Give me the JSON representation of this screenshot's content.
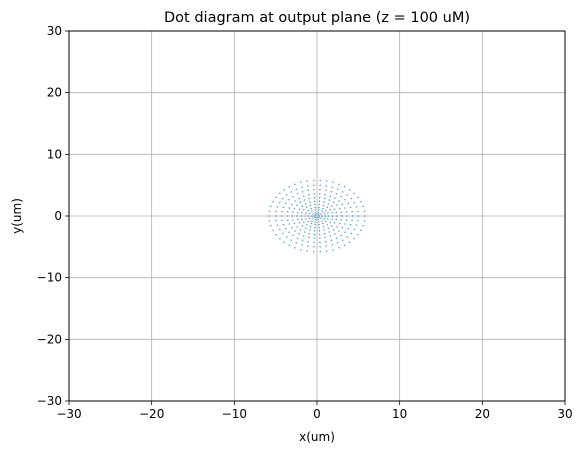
{
  "chart_data": {
    "type": "scatter",
    "title": "Dot diagram at output plane (z = 100 uM)",
    "xlabel": "x(um)",
    "ylabel": "y(um)",
    "xlim": [
      -30,
      30
    ],
    "ylim": [
      -30,
      30
    ],
    "xticks": [
      -30,
      -20,
      -10,
      0,
      10,
      20,
      30
    ],
    "yticks": [
      -30,
      -20,
      -10,
      0,
      10,
      20,
      30
    ],
    "xtick_labels": [
      "−30",
      "−20",
      "−10",
      "0",
      "10",
      "20",
      "30"
    ],
    "ytick_labels": [
      "−30",
      "−20",
      "−10",
      "0",
      "10",
      "20",
      "30"
    ],
    "grid": true,
    "point_color": "#1f77b4",
    "series": [
      {
        "pattern": "concentric rings of dots centered at origin",
        "center": [
          0,
          0
        ],
        "ring_radii_x": [
          0.3,
          0.6,
          1.0,
          1.4,
          1.9,
          2.4,
          3.0,
          3.6,
          4.3,
          5.0,
          5.8
        ],
        "ring_radii_y": [
          0.3,
          0.6,
          1.0,
          1.4,
          1.9,
          2.4,
          3.0,
          3.6,
          4.3,
          5.0,
          5.8
        ],
        "points_per_ring": [
          8,
          10,
          14,
          18,
          22,
          26,
          30,
          34,
          38,
          42,
          46
        ]
      }
    ]
  }
}
